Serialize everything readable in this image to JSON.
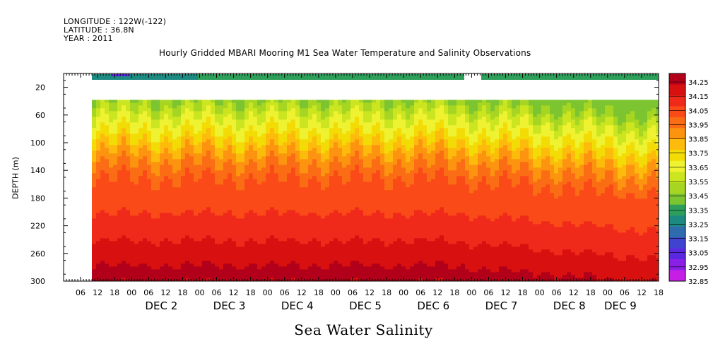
{
  "header": {
    "longitude": "LONGITUDE : 122W(-122)",
    "latitude": "LATITUDE : 36.8N",
    "year": "YEAR : 2011"
  },
  "chart_data": {
    "type": "heatmap",
    "title": "Hourly Gridded MBARI Mooring M1 Sea Water Temperature and Salinity Observations",
    "variable_label": "Sea Water Salinity",
    "ylabel": "DEPTH (m)",
    "y_reversed": true,
    "ylim": [
      300,
      0
    ],
    "y_ticks": [
      20,
      60,
      100,
      140,
      180,
      220,
      260,
      300
    ],
    "x_range_hours": [
      0,
      210
    ],
    "x_hour_ticks": [
      "06",
      "12",
      "18",
      "00",
      "06",
      "12",
      "18",
      "00",
      "06",
      "12",
      "18",
      "00",
      "06",
      "12",
      "18",
      "00",
      "06",
      "12",
      "18",
      "00",
      "06",
      "12",
      "18",
      "00",
      "06",
      "12",
      "18",
      "00",
      "06",
      "12",
      "18",
      "00",
      "06",
      "12",
      "18",
      "00"
    ],
    "x_day_labels": [
      {
        "label": "DEC  2",
        "hour": 36
      },
      {
        "label": "DEC  3",
        "hour": 60
      },
      {
        "label": "DEC  4",
        "hour": 84
      },
      {
        "label": "DEC  5",
        "hour": 108
      },
      {
        "label": "DEC  6",
        "hour": 132
      },
      {
        "label": "DEC  7",
        "hour": 156
      },
      {
        "label": "DEC  8",
        "hour": 180
      },
      {
        "label": "DEC  9",
        "hour": 198
      }
    ],
    "colorbar_levels": [
      "34.25",
      "34.15",
      "34.05",
      "33.95",
      "33.85",
      "33.75",
      "33.65",
      "33.55",
      "33.45",
      "33.35",
      "33.25",
      "33.15",
      "33.05",
      "32.95",
      "32.85"
    ],
    "colors": [
      "#b3001a",
      "#d81010",
      "#f02a1a",
      "#fa4a18",
      "#fb6d14",
      "#fd9410",
      "#fdbb0c",
      "#f3dc06",
      "#eff230",
      "#cbe620",
      "#a7d622",
      "#7cc430",
      "#2d9f5a",
      "#1d8a82",
      "#2f6cae",
      "#3f43cf",
      "#5a28e0",
      "#8a20e6",
      "#c61ee4"
    ],
    "data_description": "Salinity contours: surface ~33.2-33.3 (teal), upper layer 33.4-33.7, increasing to 34.15-34.25 near 260 m; gap in surface sensor Dec 6 ~18:00 to Dec 7 ~02:00; no data above ~35 m except surface band."
  }
}
